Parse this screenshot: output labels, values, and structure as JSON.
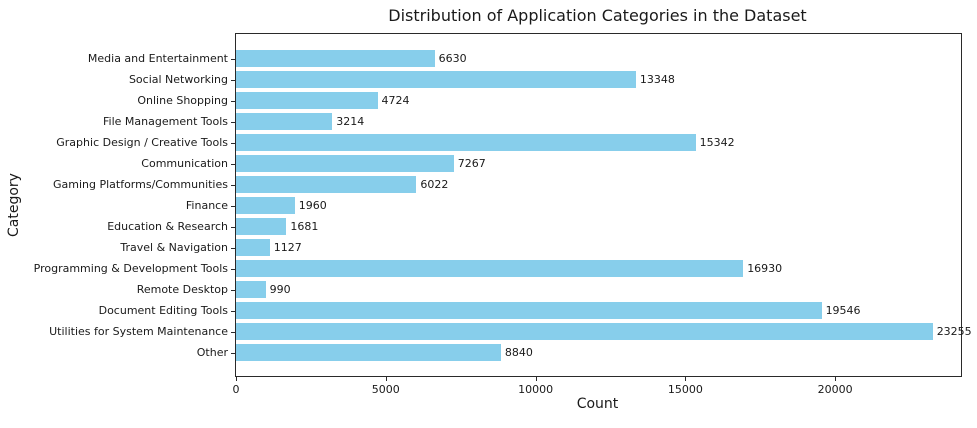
{
  "chart_data": {
    "type": "bar",
    "orientation": "horizontal",
    "title": "Distribution of Application Categories in the Dataset",
    "xlabel": "Count",
    "ylabel": "Category",
    "categories": [
      "Media and Entertainment",
      "Social Networking",
      "Online Shopping",
      "File Management Tools",
      "Graphic Design / Creative Tools",
      "Communication",
      "Gaming Platforms/Communities",
      "Finance",
      "Education & Research",
      "Travel & Navigation",
      "Programming & Development Tools",
      "Remote Desktop",
      "Document Editing Tools",
      "Utilities for System Maintenance",
      "Other"
    ],
    "values": [
      6630,
      13348,
      4724,
      3214,
      15342,
      7267,
      6022,
      1960,
      1681,
      1127,
      16930,
      990,
      19546,
      23255,
      8840
    ],
    "x_ticks": [
      0,
      5000,
      10000,
      15000,
      20000
    ],
    "xlim": [
      0,
      24200
    ],
    "bar_color": "#87CEEB",
    "spine_color": "#2a2a2a",
    "text_color": "#1a1a1a",
    "background_color": "#ffffff",
    "grid": false,
    "legend": false,
    "value_labels_shown": true
  }
}
